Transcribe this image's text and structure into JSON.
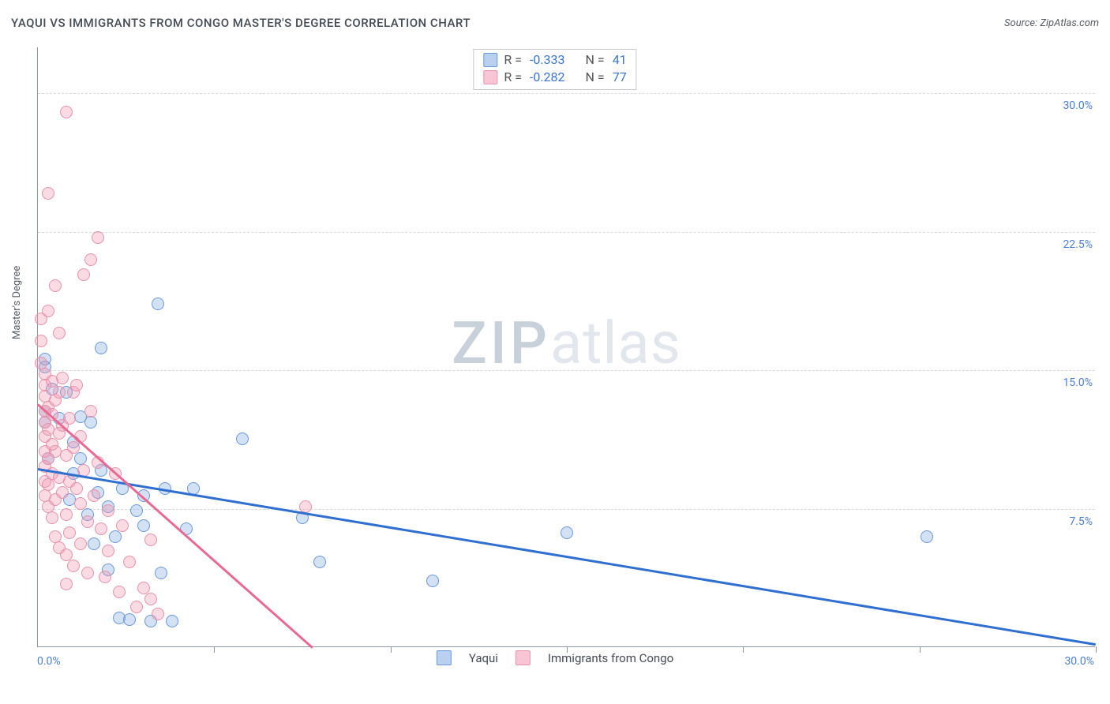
{
  "title": "YAQUI VS IMMIGRANTS FROM CONGO MASTER'S DEGREE CORRELATION CHART",
  "source_label": "Source: ",
  "source_name": "ZipAtlas.com",
  "y_axis_title": "Master's Degree",
  "watermark": {
    "part1": "ZIP",
    "part2": "atlas"
  },
  "chart": {
    "type": "scatter",
    "background_color": "#ffffff",
    "grid_color": "#d7dadf",
    "axis_color": "#8f97a3",
    "tick_label_color": "#4b7fd1",
    "xlim": [
      0,
      30
    ],
    "ylim": [
      0,
      32.5
    ],
    "ytick_step": 7.5,
    "xtick_step": 5,
    "y_tick_labels": [
      "7.5%",
      "15.0%",
      "22.5%",
      "30.0%"
    ],
    "x_min_label": "0.0%",
    "x_max_label": "30.0%",
    "series": [
      {
        "name": "Yaqui",
        "color_fill": "rgba(130,170,225,0.35)",
        "color_stroke": "#6a98d8",
        "trend_color": "#2e6fd0",
        "R": "-0.333",
        "N": "41",
        "trend": {
          "x1": 0.0,
          "y1": 9.7,
          "x2": 30.0,
          "y2": 0.2
        },
        "points": [
          [
            0.2,
            15.6
          ],
          [
            0.2,
            15.2
          ],
          [
            0.2,
            12.8
          ],
          [
            0.2,
            12.2
          ],
          [
            0.3,
            10.2
          ],
          [
            0.4,
            14.0
          ],
          [
            0.6,
            12.4
          ],
          [
            0.8,
            13.8
          ],
          [
            0.9,
            8.0
          ],
          [
            1.0,
            11.1
          ],
          [
            1.0,
            9.4
          ],
          [
            1.2,
            10.2
          ],
          [
            1.2,
            12.5
          ],
          [
            1.4,
            7.2
          ],
          [
            1.5,
            12.2
          ],
          [
            1.6,
            5.6
          ],
          [
            1.7,
            8.4
          ],
          [
            1.8,
            16.2
          ],
          [
            1.8,
            9.6
          ],
          [
            2.0,
            7.6
          ],
          [
            2.0,
            4.2
          ],
          [
            2.2,
            6.0
          ],
          [
            2.3,
            1.6
          ],
          [
            2.4,
            8.6
          ],
          [
            2.6,
            1.5
          ],
          [
            2.8,
            7.4
          ],
          [
            3.0,
            8.2
          ],
          [
            3.0,
            6.6
          ],
          [
            3.2,
            1.4
          ],
          [
            3.4,
            18.6
          ],
          [
            3.5,
            4.0
          ],
          [
            3.6,
            8.6
          ],
          [
            3.8,
            1.4
          ],
          [
            4.2,
            6.4
          ],
          [
            4.4,
            8.6
          ],
          [
            5.8,
            11.3
          ],
          [
            7.5,
            7.0
          ],
          [
            8.0,
            4.6
          ],
          [
            11.2,
            3.6
          ],
          [
            15.0,
            6.2
          ],
          [
            25.2,
            6.0
          ]
        ]
      },
      {
        "name": "Immigrants from Congo",
        "color_fill": "rgba(240,150,175,0.35)",
        "color_stroke": "#e592ab",
        "trend_color": "#e86a92",
        "R": "-0.282",
        "N": "77",
        "trend": {
          "x1": 0.0,
          "y1": 13.2,
          "x2": 7.8,
          "y2": 0.0
        },
        "points": [
          [
            0.1,
            17.8
          ],
          [
            0.1,
            16.6
          ],
          [
            0.1,
            15.4
          ],
          [
            0.2,
            14.8
          ],
          [
            0.2,
            14.2
          ],
          [
            0.2,
            13.6
          ],
          [
            0.2,
            12.8
          ],
          [
            0.2,
            12.2
          ],
          [
            0.2,
            11.4
          ],
          [
            0.2,
            10.6
          ],
          [
            0.2,
            9.8
          ],
          [
            0.2,
            9.0
          ],
          [
            0.2,
            8.2
          ],
          [
            0.3,
            24.6
          ],
          [
            0.3,
            18.2
          ],
          [
            0.3,
            13.0
          ],
          [
            0.3,
            11.8
          ],
          [
            0.3,
            10.2
          ],
          [
            0.3,
            8.8
          ],
          [
            0.3,
            7.6
          ],
          [
            0.4,
            14.4
          ],
          [
            0.4,
            12.6
          ],
          [
            0.4,
            11.0
          ],
          [
            0.4,
            9.4
          ],
          [
            0.4,
            7.0
          ],
          [
            0.5,
            19.6
          ],
          [
            0.5,
            13.4
          ],
          [
            0.5,
            10.6
          ],
          [
            0.5,
            8.0
          ],
          [
            0.5,
            6.0
          ],
          [
            0.6,
            17.0
          ],
          [
            0.6,
            13.8
          ],
          [
            0.6,
            11.6
          ],
          [
            0.6,
            9.2
          ],
          [
            0.6,
            5.4
          ],
          [
            0.7,
            14.6
          ],
          [
            0.7,
            12.0
          ],
          [
            0.7,
            8.4
          ],
          [
            0.8,
            29.0
          ],
          [
            0.8,
            10.4
          ],
          [
            0.8,
            7.2
          ],
          [
            0.8,
            5.0
          ],
          [
            0.8,
            3.4
          ],
          [
            0.9,
            12.4
          ],
          [
            0.9,
            9.0
          ],
          [
            0.9,
            6.2
          ],
          [
            1.0,
            13.8
          ],
          [
            1.0,
            10.8
          ],
          [
            1.0,
            4.4
          ],
          [
            1.1,
            14.2
          ],
          [
            1.1,
            8.6
          ],
          [
            1.2,
            11.4
          ],
          [
            1.2,
            7.8
          ],
          [
            1.2,
            5.6
          ],
          [
            1.3,
            20.2
          ],
          [
            1.3,
            9.6
          ],
          [
            1.4,
            6.8
          ],
          [
            1.4,
            4.0
          ],
          [
            1.5,
            21.0
          ],
          [
            1.5,
            12.8
          ],
          [
            1.6,
            8.2
          ],
          [
            1.7,
            10.0
          ],
          [
            1.7,
            22.2
          ],
          [
            1.8,
            6.4
          ],
          [
            1.9,
            3.8
          ],
          [
            2.0,
            7.4
          ],
          [
            2.0,
            5.2
          ],
          [
            2.2,
            9.4
          ],
          [
            2.3,
            3.0
          ],
          [
            2.4,
            6.6
          ],
          [
            2.6,
            4.6
          ],
          [
            2.8,
            2.2
          ],
          [
            3.0,
            3.2
          ],
          [
            3.2,
            5.8
          ],
          [
            3.2,
            2.6
          ],
          [
            3.4,
            1.8
          ],
          [
            7.6,
            7.6
          ]
        ]
      }
    ]
  },
  "stats_labels": {
    "R": "R =",
    "N": "N ="
  },
  "legend_labels": [
    "Yaqui",
    "Immigrants from Congo"
  ]
}
